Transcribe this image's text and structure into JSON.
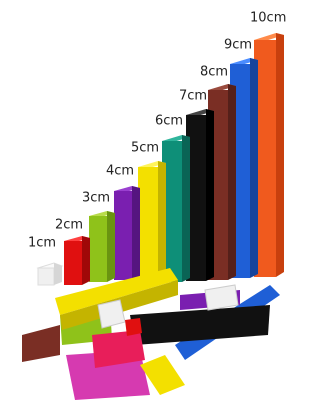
{
  "labels": [
    "1cm",
    "2cm",
    "3cm",
    "4cm",
    "5cm",
    "6cm",
    "7cm",
    "8cm",
    "9cm",
    "10cm"
  ]
}
